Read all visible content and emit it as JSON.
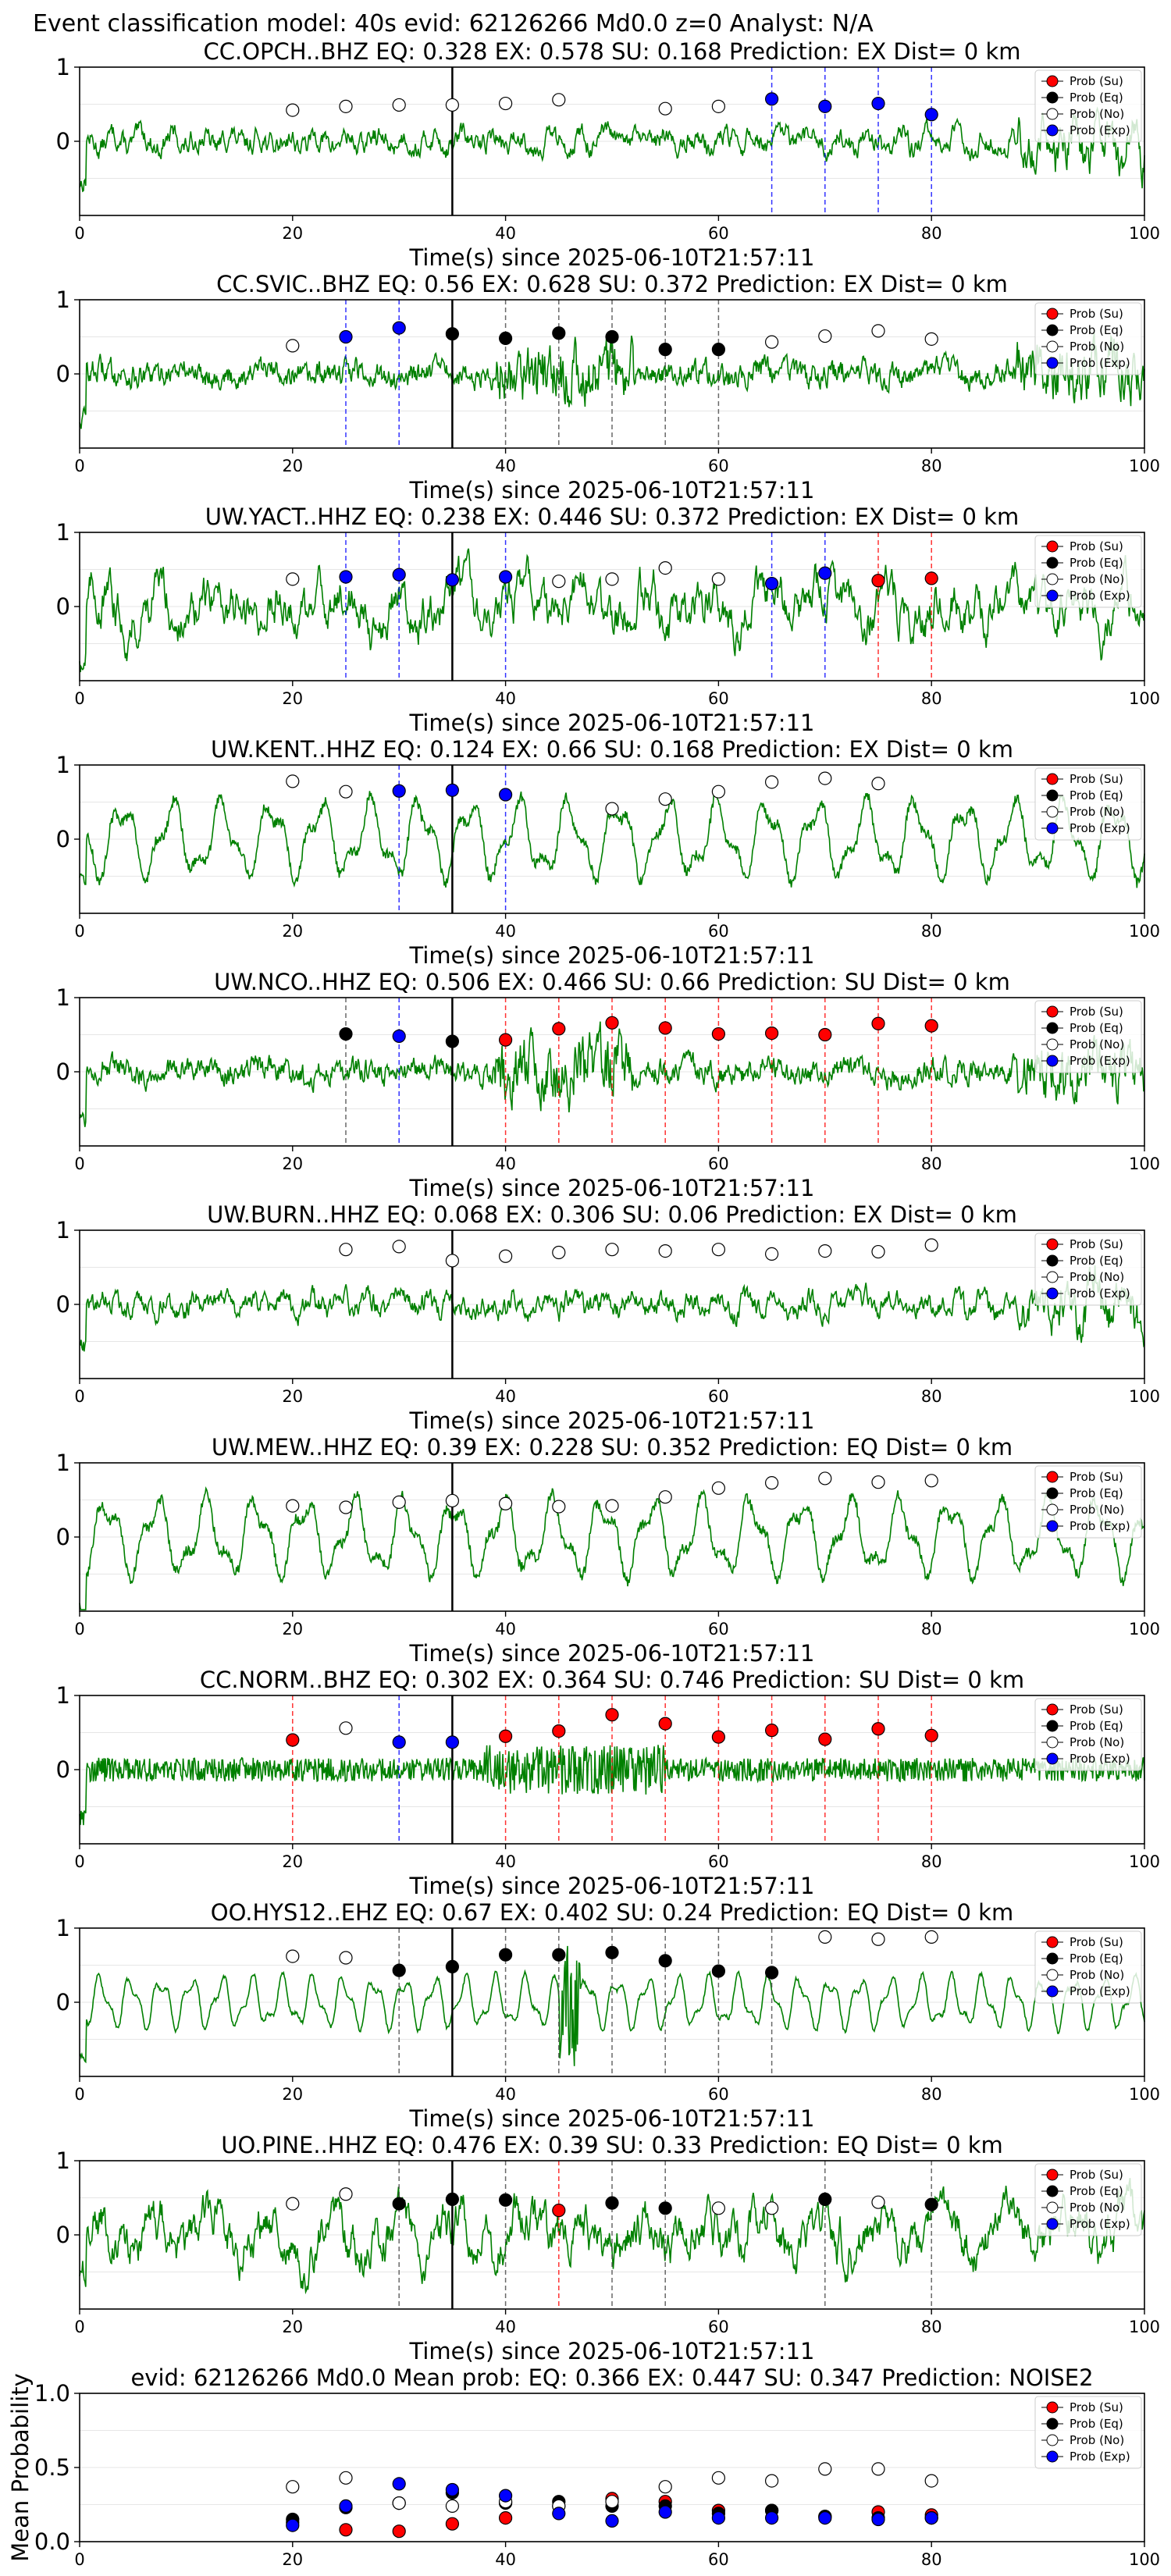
{
  "figure": {
    "title": "Event classification model: 40s evid: 62126266 Md0.0 z=0 Analyst: N/A",
    "legend_entries": [
      "Prob (Su)",
      "Prob (Eq)",
      "Prob (No)",
      "Prob (Exp)"
    ],
    "colors": {
      "su": "#ff0000",
      "eq": "#000000",
      "no": "#ffffff",
      "exp": "#0000ff",
      "trace": "#008000",
      "pick": "#000000"
    }
  },
  "chart_data": [
    {
      "type": "line",
      "station": "CC.OPCH..BHZ",
      "title": "CC.OPCH..BHZ   EQ: 0.328  EX: 0.578  SU: 0.168   Prediction: EX    Dist= 0 km",
      "xlabel": "Time(s) since 2025-06-10T21:57:11",
      "ylabel": "",
      "xlim": [
        0,
        100
      ],
      "ylim": [
        -1,
        1
      ],
      "x_ticks": [
        0,
        20,
        40,
        60,
        80,
        100
      ],
      "y_ticks": [
        0,
        1
      ],
      "pick_time": 35,
      "grid": true,
      "legend": "upper-right",
      "trace_style": "mixed",
      "x": [
        20,
        25,
        30,
        35,
        40,
        45,
        55,
        60,
        65,
        70,
        75,
        80
      ],
      "probs": [
        0.42,
        0.47,
        0.49,
        0.49,
        0.51,
        0.56,
        0.44,
        0.47,
        0.57,
        0.47,
        0.51,
        0.36
      ],
      "classes": [
        "no",
        "no",
        "no",
        "no",
        "no",
        "no",
        "no",
        "no",
        "exp",
        "exp",
        "exp",
        "exp"
      ]
    },
    {
      "type": "line",
      "station": "CC.SVIC..BHZ",
      "title": "CC.SVIC..BHZ   EQ: 0.56  EX: 0.628  SU: 0.372   Prediction: EX    Dist= 0 km",
      "xlabel": "Time(s) since 2025-06-10T21:57:11",
      "ylabel": "",
      "xlim": [
        0,
        100
      ],
      "ylim": [
        -1,
        1
      ],
      "x_ticks": [
        0,
        20,
        40,
        60,
        80,
        100
      ],
      "y_ticks": [
        0,
        1
      ],
      "pick_time": 35,
      "grid": true,
      "legend": "upper-right",
      "trace_style": "burst",
      "x": [
        20,
        25,
        30,
        35,
        40,
        45,
        50,
        55,
        60,
        65,
        70,
        75,
        80
      ],
      "probs": [
        0.38,
        0.5,
        0.62,
        0.54,
        0.48,
        0.55,
        0.5,
        0.33,
        0.33,
        0.43,
        0.51,
        0.58,
        0.47
      ],
      "classes": [
        "no",
        "exp",
        "exp",
        "eq",
        "eq",
        "eq",
        "eq",
        "eq",
        "eq",
        "no",
        "no",
        "no",
        "no"
      ]
    },
    {
      "type": "line",
      "station": "UW.YACT..HHZ",
      "title": "UW.YACT..HHZ   EQ: 0.238  EX: 0.446  SU: 0.372   Prediction: EX    Dist= 0 km",
      "xlabel": "Time(s) since 2025-06-10T21:57:11",
      "ylabel": "",
      "xlim": [
        0,
        100
      ],
      "ylim": [
        -1,
        1
      ],
      "x_ticks": [
        0,
        20,
        40,
        60,
        80,
        100
      ],
      "y_ticks": [
        0,
        1
      ],
      "pick_time": 35,
      "grid": true,
      "legend": "upper-right",
      "trace_style": "rough",
      "x": [
        20,
        25,
        30,
        35,
        40,
        45,
        50,
        55,
        60,
        65,
        70,
        75,
        80
      ],
      "probs": [
        0.37,
        0.4,
        0.43,
        0.36,
        0.4,
        0.34,
        0.37,
        0.52,
        0.37,
        0.31,
        0.45,
        0.35,
        0.38
      ],
      "classes": [
        "no",
        "exp",
        "exp",
        "exp",
        "exp",
        "no",
        "no",
        "no",
        "no",
        "exp",
        "exp",
        "su",
        "su"
      ]
    },
    {
      "type": "line",
      "station": "UW.KENT..HHZ",
      "title": "UW.KENT..HHZ   EQ: 0.124  EX: 0.66  SU: 0.168   Prediction: EX    Dist= 0 km",
      "xlabel": "Time(s) since 2025-06-10T21:57:11",
      "ylabel": "",
      "xlim": [
        0,
        100
      ],
      "ylim": [
        -1,
        1
      ],
      "x_ticks": [
        0,
        20,
        40,
        60,
        80,
        100
      ],
      "y_ticks": [
        0,
        1
      ],
      "pick_time": 35,
      "grid": true,
      "legend": "upper-right",
      "trace_style": "wave",
      "x": [
        20,
        25,
        30,
        35,
        40,
        50,
        55,
        60,
        65,
        70,
        75
      ],
      "probs": [
        0.78,
        0.64,
        0.65,
        0.66,
        0.6,
        0.41,
        0.54,
        0.64,
        0.77,
        0.82,
        0.75
      ],
      "classes": [
        "no",
        "no",
        "exp",
        "exp",
        "exp",
        "no",
        "no",
        "no",
        "no",
        "no",
        "no"
      ]
    },
    {
      "type": "line",
      "station": "UW.NCO..HHZ",
      "title": "UW.NCO..HHZ   EQ: 0.506  EX: 0.466  SU: 0.66   Prediction: SU    Dist= 0 km",
      "xlabel": "Time(s) since 2025-06-10T21:57:11",
      "ylabel": "",
      "xlim": [
        0,
        100
      ],
      "ylim": [
        -1,
        1
      ],
      "x_ticks": [
        0,
        20,
        40,
        60,
        80,
        100
      ],
      "y_ticks": [
        0,
        1
      ],
      "pick_time": 35,
      "grid": true,
      "legend": "upper-right",
      "trace_style": "burst",
      "x": [
        25,
        30,
        35,
        40,
        45,
        50,
        55,
        60,
        65,
        70,
        75,
        80
      ],
      "probs": [
        0.51,
        0.48,
        0.41,
        0.43,
        0.58,
        0.66,
        0.59,
        0.51,
        0.52,
        0.5,
        0.65,
        0.62
      ],
      "classes": [
        "eq",
        "exp",
        "eq",
        "su",
        "su",
        "su",
        "su",
        "su",
        "su",
        "su",
        "su",
        "su"
      ]
    },
    {
      "type": "line",
      "station": "UW.BURN..HHZ",
      "title": "UW.BURN..HHZ   EQ: 0.068  EX: 0.306  SU: 0.06   Prediction: EX    Dist= 0 km",
      "xlabel": "Time(s) since 2025-06-10T21:57:11",
      "ylabel": "",
      "xlim": [
        0,
        100
      ],
      "ylim": [
        -1,
        1
      ],
      "x_ticks": [
        0,
        20,
        40,
        60,
        80,
        100
      ],
      "y_ticks": [
        0,
        1
      ],
      "pick_time": 35,
      "grid": true,
      "legend": "upper-right",
      "trace_style": "mixed",
      "x": [
        25,
        30,
        35,
        40,
        45,
        50,
        55,
        60,
        65,
        70,
        75,
        80
      ],
      "probs": [
        0.74,
        0.78,
        0.59,
        0.65,
        0.7,
        0.74,
        0.72,
        0.74,
        0.68,
        0.72,
        0.71,
        0.8
      ],
      "classes": [
        "no",
        "no",
        "no",
        "no",
        "no",
        "no",
        "no",
        "no",
        "no",
        "no",
        "no",
        "no"
      ]
    },
    {
      "type": "line",
      "station": "UW.MEW..HHZ",
      "title": "UW.MEW..HHZ   EQ: 0.39  EX: 0.228  SU: 0.352   Prediction: EQ    Dist= 0 km",
      "xlabel": "Time(s) since 2025-06-10T21:57:11",
      "ylabel": "",
      "xlim": [
        0,
        100
      ],
      "ylim": [
        -1,
        1
      ],
      "x_ticks": [
        0,
        20,
        40,
        60,
        80,
        100
      ],
      "y_ticks": [
        0,
        1
      ],
      "pick_time": 35,
      "grid": true,
      "legend": "upper-right",
      "trace_style": "wave",
      "x": [
        20,
        25,
        30,
        35,
        40,
        45,
        50,
        55,
        60,
        65,
        70,
        75,
        80
      ],
      "probs": [
        0.42,
        0.4,
        0.47,
        0.49,
        0.45,
        0.41,
        0.42,
        0.54,
        0.66,
        0.73,
        0.79,
        0.74,
        0.76
      ],
      "classes": [
        "no",
        "no",
        "no",
        "no",
        "no",
        "no",
        "no",
        "no",
        "no",
        "no",
        "no",
        "no",
        "no"
      ]
    },
    {
      "type": "line",
      "station": "CC.NORM..BHZ",
      "title": "CC.NORM..BHZ   EQ: 0.302  EX: 0.364  SU: 0.746   Prediction: SU    Dist= 0 km",
      "xlabel": "Time(s) since 2025-06-10T21:57:11",
      "ylabel": "",
      "xlim": [
        0,
        100
      ],
      "ylim": [
        -1,
        1
      ],
      "x_ticks": [
        0,
        20,
        40,
        60,
        80,
        100
      ],
      "y_ticks": [
        0,
        1
      ],
      "pick_time": 35,
      "grid": true,
      "legend": "upper-right",
      "trace_style": "noisy",
      "x": [
        20,
        25,
        30,
        35,
        40,
        45,
        50,
        55,
        60,
        65,
        70,
        75,
        80
      ],
      "probs": [
        0.4,
        0.56,
        0.37,
        0.37,
        0.45,
        0.52,
        0.74,
        0.62,
        0.44,
        0.53,
        0.41,
        0.55,
        0.46
      ],
      "classes": [
        "su",
        "no",
        "exp",
        "exp",
        "su",
        "su",
        "su",
        "su",
        "su",
        "su",
        "su",
        "su",
        "su"
      ]
    },
    {
      "type": "line",
      "station": "OO.HYS12..EHZ",
      "title": "OO.HYS12..EHZ   EQ: 0.67  EX: 0.402  SU: 0.24   Prediction: EQ    Dist= 0 km",
      "xlabel": "Time(s) since 2025-06-10T21:57:11",
      "ylabel": "",
      "xlim": [
        0,
        100
      ],
      "ylim": [
        -1,
        1
      ],
      "x_ticks": [
        0,
        20,
        40,
        60,
        80,
        100
      ],
      "y_ticks": [
        0,
        1
      ],
      "pick_time": 35,
      "grid": true,
      "legend": "upper-right",
      "trace_style": "smooth",
      "x": [
        20,
        25,
        30,
        35,
        40,
        45,
        50,
        55,
        60,
        65,
        70,
        75,
        80
      ],
      "probs": [
        0.62,
        0.6,
        0.43,
        0.48,
        0.64,
        0.64,
        0.67,
        0.56,
        0.42,
        0.4,
        0.88,
        0.85,
        0.88
      ],
      "classes": [
        "no",
        "no",
        "eq",
        "eq",
        "eq",
        "eq",
        "eq",
        "eq",
        "eq",
        "eq",
        "no",
        "no",
        "no"
      ]
    },
    {
      "type": "line",
      "station": "UO.PINE..HHZ",
      "title": "UO.PINE..HHZ   EQ: 0.476  EX: 0.39  SU: 0.33   Prediction: EQ    Dist= 0 km",
      "xlabel": "Time(s) since 2025-06-10T21:57:11",
      "ylabel": "",
      "xlim": [
        0,
        100
      ],
      "ylim": [
        -1,
        1
      ],
      "x_ticks": [
        0,
        20,
        40,
        60,
        80,
        100
      ],
      "y_ticks": [
        0,
        1
      ],
      "pick_time": 35,
      "grid": true,
      "legend": "upper-right",
      "trace_style": "rough",
      "x": [
        20,
        25,
        30,
        35,
        40,
        45,
        50,
        55,
        60,
        65,
        70,
        75,
        80
      ],
      "probs": [
        0.42,
        0.55,
        0.42,
        0.48,
        0.47,
        0.33,
        0.43,
        0.36,
        0.36,
        0.36,
        0.48,
        0.44,
        0.41
      ],
      "classes": [
        "no",
        "no",
        "eq",
        "eq",
        "eq",
        "su",
        "eq",
        "eq",
        "no",
        "no",
        "eq",
        "no",
        "eq"
      ]
    },
    {
      "type": "scatter",
      "station": "",
      "title": "evid: 62126266  Md0.0   Mean prob:   EQ: 0.366  EX: 0.447  SU: 0.347   Prediction: NOISE2",
      "xlabel": "",
      "ylabel": "Mean Probability",
      "xlim": [
        0,
        100
      ],
      "ylim": [
        0,
        1
      ],
      "x_ticks": [
        0,
        20,
        40,
        60,
        80,
        100
      ],
      "y_ticks": [
        0.0,
        0.5,
        1.0
      ],
      "grid": true,
      "legend": "upper-right",
      "x": [
        20,
        25,
        30,
        35,
        40,
        45,
        50,
        55,
        60,
        65,
        70,
        75,
        80
      ],
      "series": [
        {
          "name": "Prob (Su)",
          "color": "#ff0000",
          "values": [
            0.13,
            0.08,
            0.07,
            0.12,
            0.16,
            0.24,
            0.29,
            0.27,
            0.21,
            0.21,
            0.17,
            0.2,
            0.18
          ]
        },
        {
          "name": "Prob (Eq)",
          "color": "#000000",
          "values": [
            0.15,
            0.23,
            0.26,
            0.33,
            0.26,
            0.27,
            0.24,
            0.24,
            0.19,
            0.21,
            0.17,
            0.16,
            0.16
          ]
        },
        {
          "name": "Prob (No)",
          "color": "#ffffff",
          "values": [
            0.37,
            0.43,
            0.26,
            0.24,
            0.27,
            0.24,
            0.27,
            0.37,
            0.43,
            0.41,
            0.49,
            0.49,
            0.41
          ]
        },
        {
          "name": "Prob (Exp)",
          "color": "#0000ff",
          "values": [
            0.11,
            0.24,
            0.39,
            0.35,
            0.31,
            0.19,
            0.14,
            0.2,
            0.16,
            0.16,
            0.16,
            0.15,
            0.16
          ]
        }
      ]
    }
  ]
}
